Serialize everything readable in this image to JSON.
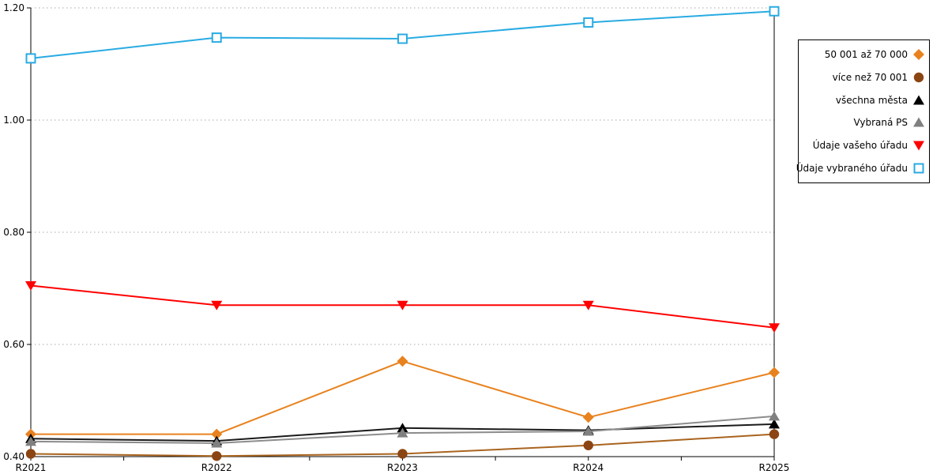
{
  "chart_data": {
    "type": "line",
    "categories": [
      "R2021",
      "R2022",
      "R2023",
      "R2024",
      "R2025"
    ],
    "series": [
      {
        "name": "50 001 až 70 000",
        "marker": "diamond",
        "color": "#E8821E",
        "line_color": "#E8821E",
        "values": [
          0.44,
          0.44,
          0.57,
          0.47,
          0.55
        ]
      },
      {
        "name": "více než 70 001",
        "marker": "circle",
        "color": "#8B4513",
        "line_color": "#A9641F",
        "values": [
          0.405,
          0.401,
          0.405,
          0.42,
          0.44
        ]
      },
      {
        "name": "všechna města",
        "marker": "triangle-up",
        "color": "#000000",
        "line_color": "#1a1a1a",
        "values": [
          0.432,
          0.428,
          0.451,
          0.447,
          0.458
        ]
      },
      {
        "name": "Vybraná PS",
        "marker": "triangle-up",
        "color": "#808080",
        "line_color": "#8c8c8c",
        "values": [
          0.427,
          0.424,
          0.442,
          0.445,
          0.472
        ]
      },
      {
        "name": "Údaje vašeho úřadu",
        "marker": "triangle-down",
        "color": "#FF0000",
        "line_color": "#FF0000",
        "values": [
          0.705,
          0.67,
          0.67,
          0.67,
          0.63
        ]
      },
      {
        "name": "Údaje vybraného úřadu",
        "marker": "square-open",
        "color": "#29ABE2",
        "line_color": "#29ABE2",
        "values": [
          1.11,
          1.147,
          1.145,
          1.174,
          1.194
        ]
      }
    ],
    "ytick_labels": [
      "0.40",
      "0.60",
      "0.80",
      "1.00",
      "1.20"
    ],
    "ytick_values": [
      0.4,
      0.6,
      0.8,
      1.0,
      1.2
    ],
    "ylim": [
      0.4,
      1.2
    ],
    "grid": "horizontal-dotted",
    "legend_position": "right"
  },
  "colors": {
    "background": "#ffffff",
    "axis": "#000000",
    "gridline": "#a8a8a8",
    "legend_border": "#000000",
    "text": "#000000"
  }
}
